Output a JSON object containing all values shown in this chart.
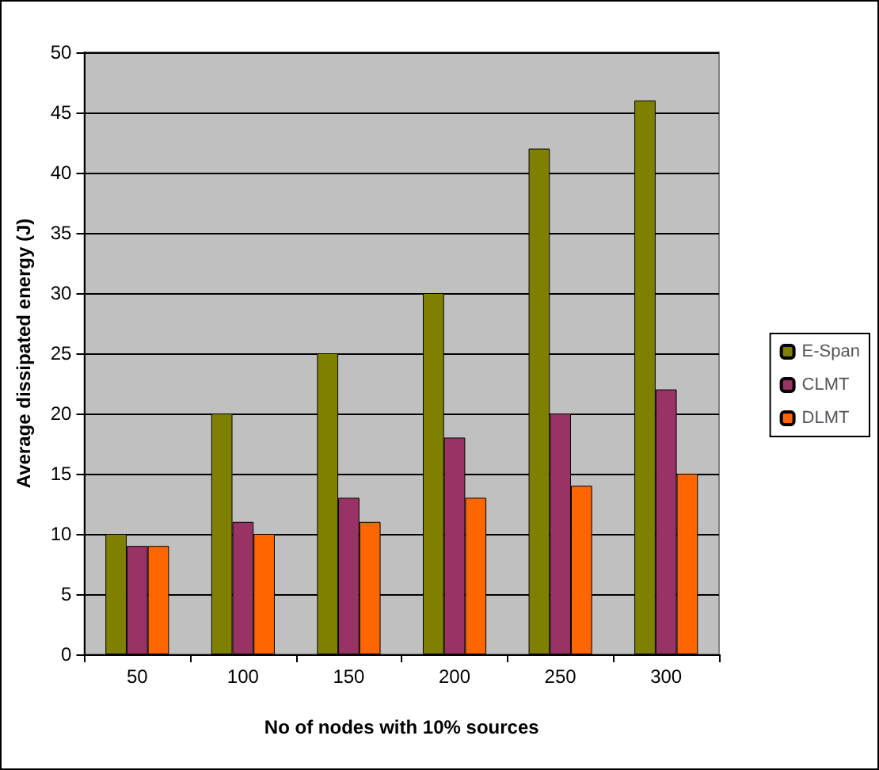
{
  "chart_data": {
    "type": "bar",
    "xlabel": "No of nodes with 10% sources",
    "ylabel": "Average dissipated energy (J)",
    "categories": [
      "50",
      "100",
      "150",
      "200",
      "250",
      "300"
    ],
    "series": [
      {
        "name": "E-Span",
        "color": "#808000",
        "values": [
          10,
          20,
          25,
          30,
          42,
          46
        ]
      },
      {
        "name": "CLMT",
        "color": "#993366",
        "values": [
          9,
          11,
          13,
          18,
          20,
          22
        ]
      },
      {
        "name": "DLMT",
        "color": "#ff6600",
        "values": [
          9,
          10,
          11,
          13,
          14,
          15
        ]
      }
    ],
    "ylim": [
      0,
      50
    ],
    "yticks": [
      0,
      5,
      10,
      15,
      20,
      25,
      30,
      35,
      40,
      45,
      50
    ],
    "grid": "y",
    "legend": "right"
  }
}
